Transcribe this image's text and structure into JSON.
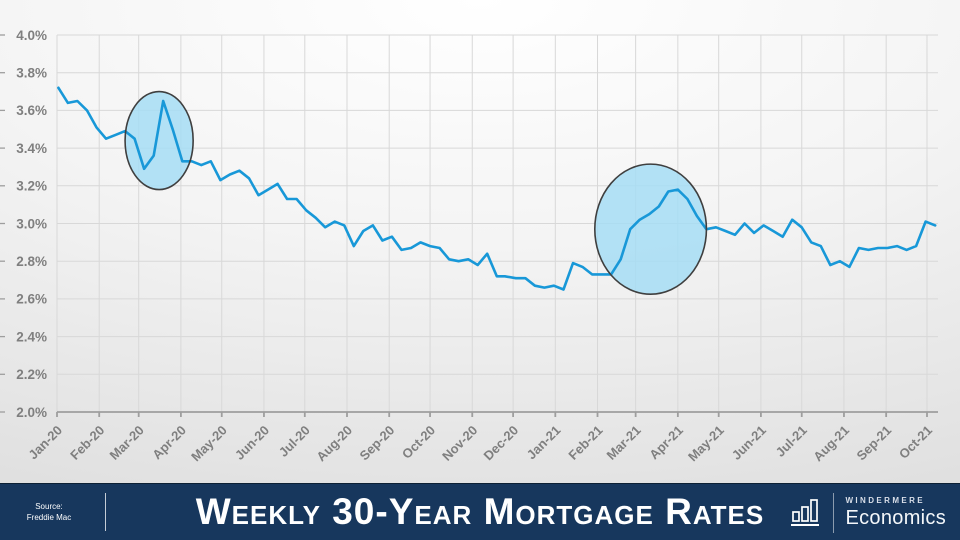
{
  "footer": {
    "source_line1": "Source:",
    "source_line2": "Freddie Mac",
    "title": "Weekly 30-Year Mortgage Rates",
    "brand_top": "WINDERMERE",
    "brand_bottom": "Economics",
    "bar_color": "#17375D"
  },
  "chart_data": {
    "type": "line",
    "title": "Weekly 30-Year Mortgage Rates",
    "series_name": "30-year fixed mortgage rate (%)",
    "grid": true,
    "line_color": "#1898D8",
    "label_color": "#7f7f7f",
    "grid_color": "#d8d8d8",
    "axis_color": "#9e9e9e",
    "y_axis": {
      "min": 2.0,
      "max": 4.0,
      "ticks": [
        {
          "label": "4.0%",
          "value": 4.0
        },
        {
          "label": "3.8%",
          "value": 3.8
        },
        {
          "label": "3.6%",
          "value": 3.6
        },
        {
          "label": "3.4%",
          "value": 3.4
        },
        {
          "label": "3.2%",
          "value": 3.2
        },
        {
          "label": "3.0%",
          "value": 3.0
        },
        {
          "label": "2.8%",
          "value": 2.8
        },
        {
          "label": "2.6%",
          "value": 2.6
        },
        {
          "label": "2.4%",
          "value": 2.4
        },
        {
          "label": "2.2%",
          "value": 2.2
        },
        {
          "label": "2.0%",
          "value": 2.0
        }
      ]
    },
    "x_axis": {
      "start_date": "2020-01-01",
      "ticks": [
        {
          "label": "Jan-20",
          "date": "2020-01-01"
        },
        {
          "label": "Feb-20",
          "date": "2020-02-01"
        },
        {
          "label": "Mar-20",
          "date": "2020-03-01"
        },
        {
          "label": "Apr-20",
          "date": "2020-04-01"
        },
        {
          "label": "May-20",
          "date": "2020-05-01"
        },
        {
          "label": "Jun-20",
          "date": "2020-06-01"
        },
        {
          "label": "Jul-20",
          "date": "2020-07-01"
        },
        {
          "label": "Aug-20",
          "date": "2020-08-01"
        },
        {
          "label": "Sep-20",
          "date": "2020-09-01"
        },
        {
          "label": "Oct-20",
          "date": "2020-10-01"
        },
        {
          "label": "Nov-20",
          "date": "2020-11-01"
        },
        {
          "label": "Dec-20",
          "date": "2020-12-01"
        },
        {
          "label": "Jan-21",
          "date": "2021-01-01"
        },
        {
          "label": "Feb-21",
          "date": "2021-02-01"
        },
        {
          "label": "Mar-21",
          "date": "2021-03-01"
        },
        {
          "label": "Apr-21",
          "date": "2021-04-01"
        },
        {
          "label": "May-21",
          "date": "2021-05-01"
        },
        {
          "label": "Jun-21",
          "date": "2021-06-01"
        },
        {
          "label": "Jul-21",
          "date": "2021-07-01"
        },
        {
          "label": "Aug-21",
          "date": "2021-08-01"
        },
        {
          "label": "Sep-21",
          "date": "2021-09-01"
        },
        {
          "label": "Oct-21",
          "date": "2021-10-01"
        }
      ]
    },
    "points": [
      [
        "2020-01-02",
        3.72
      ],
      [
        "2020-01-09",
        3.64
      ],
      [
        "2020-01-16",
        3.65
      ],
      [
        "2020-01-23",
        3.6
      ],
      [
        "2020-01-30",
        3.51
      ],
      [
        "2020-02-06",
        3.45
      ],
      [
        "2020-02-13",
        3.47
      ],
      [
        "2020-02-20",
        3.49
      ],
      [
        "2020-02-27",
        3.45
      ],
      [
        "2020-03-05",
        3.29
      ],
      [
        "2020-03-12",
        3.36
      ],
      [
        "2020-03-19",
        3.65
      ],
      [
        "2020-03-26",
        3.5
      ],
      [
        "2020-04-02",
        3.33
      ],
      [
        "2020-04-09",
        3.33
      ],
      [
        "2020-04-16",
        3.31
      ],
      [
        "2020-04-23",
        3.33
      ],
      [
        "2020-04-30",
        3.23
      ],
      [
        "2020-05-07",
        3.26
      ],
      [
        "2020-05-14",
        3.28
      ],
      [
        "2020-05-21",
        3.24
      ],
      [
        "2020-05-28",
        3.15
      ],
      [
        "2020-06-04",
        3.18
      ],
      [
        "2020-06-11",
        3.21
      ],
      [
        "2020-06-18",
        3.13
      ],
      [
        "2020-06-25",
        3.13
      ],
      [
        "2020-07-02",
        3.07
      ],
      [
        "2020-07-09",
        3.03
      ],
      [
        "2020-07-16",
        2.98
      ],
      [
        "2020-07-23",
        3.01
      ],
      [
        "2020-07-30",
        2.99
      ],
      [
        "2020-08-06",
        2.88
      ],
      [
        "2020-08-13",
        2.96
      ],
      [
        "2020-08-20",
        2.99
      ],
      [
        "2020-08-27",
        2.91
      ],
      [
        "2020-09-03",
        2.93
      ],
      [
        "2020-09-10",
        2.86
      ],
      [
        "2020-09-17",
        2.87
      ],
      [
        "2020-09-24",
        2.9
      ],
      [
        "2020-10-01",
        2.88
      ],
      [
        "2020-10-08",
        2.87
      ],
      [
        "2020-10-15",
        2.81
      ],
      [
        "2020-10-22",
        2.8
      ],
      [
        "2020-10-29",
        2.81
      ],
      [
        "2020-11-05",
        2.78
      ],
      [
        "2020-11-12",
        2.84
      ],
      [
        "2020-11-19",
        2.72
      ],
      [
        "2020-11-25",
        2.72
      ],
      [
        "2020-12-03",
        2.71
      ],
      [
        "2020-12-10",
        2.71
      ],
      [
        "2020-12-17",
        2.67
      ],
      [
        "2020-12-24",
        2.66
      ],
      [
        "2020-12-31",
        2.67
      ],
      [
        "2021-01-07",
        2.65
      ],
      [
        "2021-01-14",
        2.79
      ],
      [
        "2021-01-21",
        2.77
      ],
      [
        "2021-01-28",
        2.73
      ],
      [
        "2021-02-04",
        2.73
      ],
      [
        "2021-02-11",
        2.73
      ],
      [
        "2021-02-18",
        2.81
      ],
      [
        "2021-02-25",
        2.97
      ],
      [
        "2021-03-04",
        3.02
      ],
      [
        "2021-03-11",
        3.05
      ],
      [
        "2021-03-18",
        3.09
      ],
      [
        "2021-03-25",
        3.17
      ],
      [
        "2021-04-01",
        3.18
      ],
      [
        "2021-04-08",
        3.13
      ],
      [
        "2021-04-15",
        3.04
      ],
      [
        "2021-04-22",
        2.97
      ],
      [
        "2021-04-29",
        2.98
      ],
      [
        "2021-05-06",
        2.96
      ],
      [
        "2021-05-13",
        2.94
      ],
      [
        "2021-05-20",
        3.0
      ],
      [
        "2021-05-27",
        2.95
      ],
      [
        "2021-06-03",
        2.99
      ],
      [
        "2021-06-10",
        2.96
      ],
      [
        "2021-06-17",
        2.93
      ],
      [
        "2021-06-24",
        3.02
      ],
      [
        "2021-07-01",
        2.98
      ],
      [
        "2021-07-08",
        2.9
      ],
      [
        "2021-07-15",
        2.88
      ],
      [
        "2021-07-22",
        2.78
      ],
      [
        "2021-07-29",
        2.8
      ],
      [
        "2021-08-05",
        2.77
      ],
      [
        "2021-08-12",
        2.87
      ],
      [
        "2021-08-19",
        2.86
      ],
      [
        "2021-08-26",
        2.87
      ],
      [
        "2021-09-02",
        2.87
      ],
      [
        "2021-09-09",
        2.88
      ],
      [
        "2021-09-16",
        2.86
      ],
      [
        "2021-09-23",
        2.88
      ],
      [
        "2021-09-30",
        3.01
      ],
      [
        "2021-10-07",
        2.99
      ]
    ],
    "annotations": [
      {
        "name": "march-2020-spike-highlight",
        "type": "ellipse",
        "center_date": "2020-03-16",
        "center_value": 3.44,
        "rx_days": 25,
        "ry_value": 0.26,
        "fill": "#A6DDF5",
        "fill_opacity": 0.85,
        "stroke": "#3F3F3F"
      },
      {
        "name": "spring-2021-rise-highlight",
        "type": "ellipse",
        "center_date": "2021-03-12",
        "center_value": 2.97,
        "rx_days": 41,
        "ry_value": 0.345,
        "fill": "#A6DDF5",
        "fill_opacity": 0.85,
        "stroke": "#3F3F3F"
      }
    ]
  }
}
